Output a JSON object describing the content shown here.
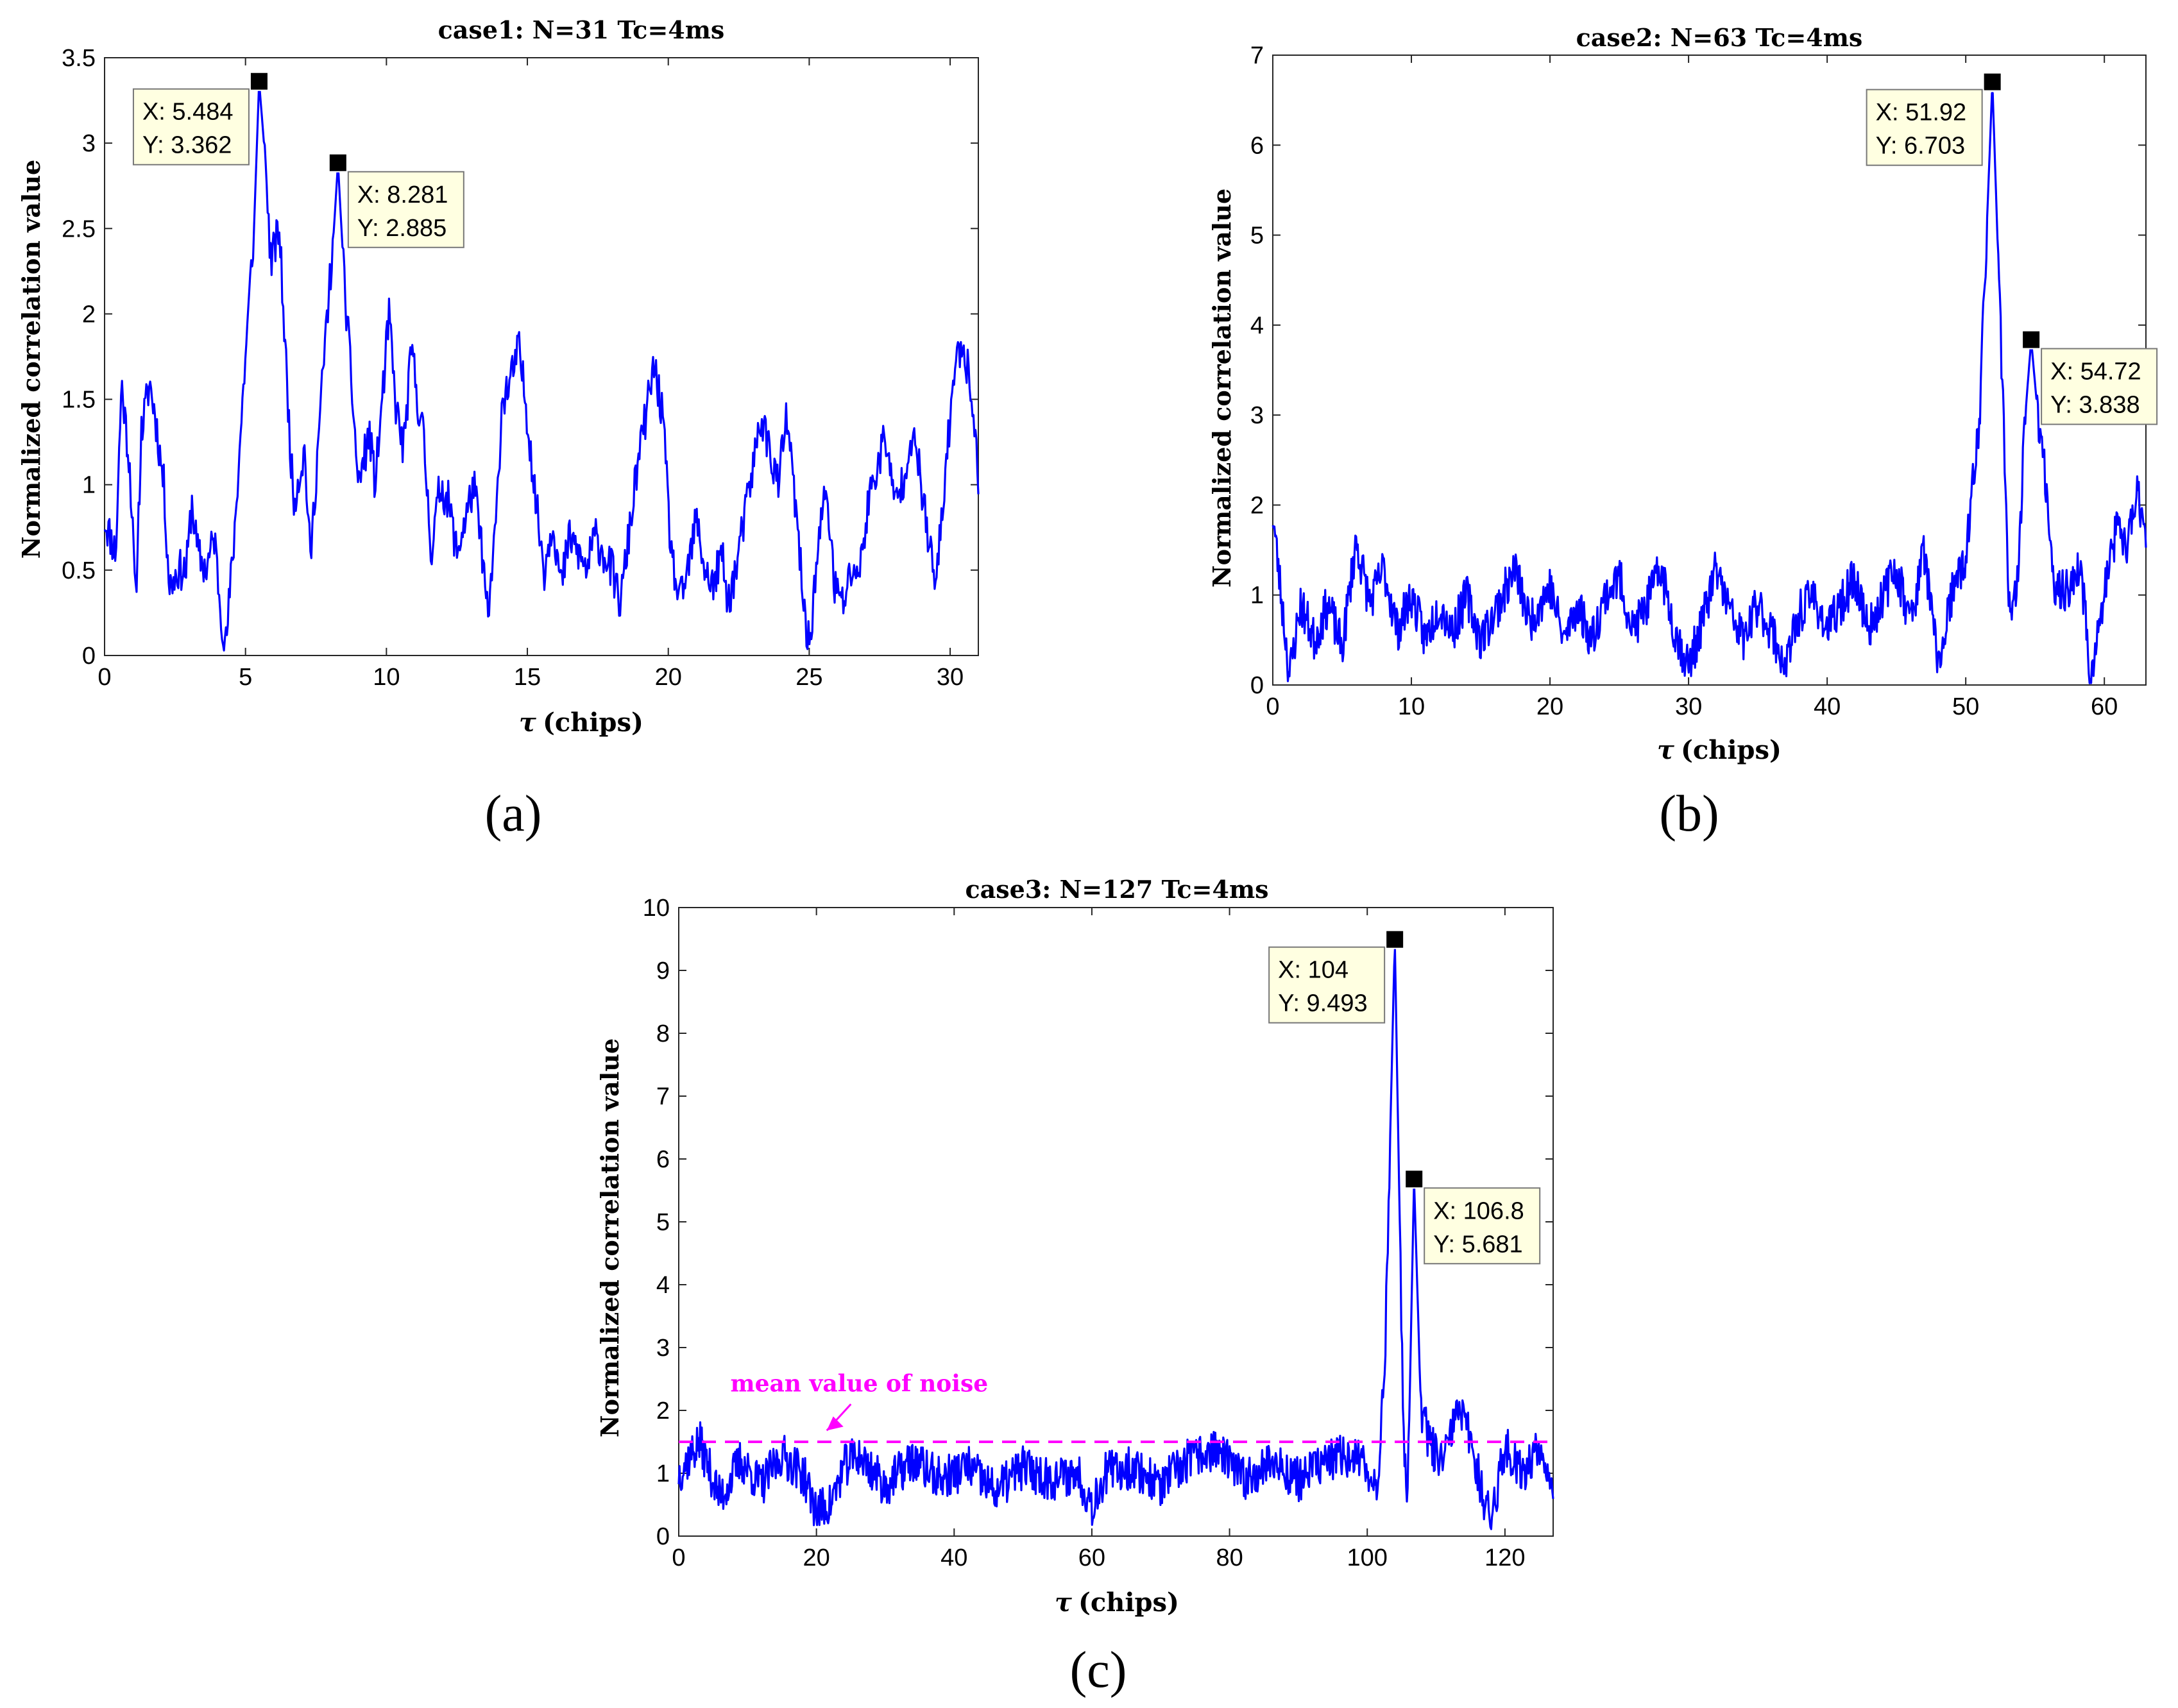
{
  "chart_data": [
    {
      "type": "line",
      "panel_label": "(a)",
      "title": "case1: N=31 Tc=4ms",
      "xlabel": "(chips)",
      "xlabel_symbol": "τ",
      "ylabel": "Normalized correlation value",
      "xlim": [
        0,
        31
      ],
      "ylim": [
        0,
        3.5
      ],
      "xticks": [
        0,
        5,
        10,
        15,
        20,
        25,
        30
      ],
      "yticks": [
        0,
        0.5,
        1,
        1.5,
        2,
        2.5,
        3,
        3.5
      ],
      "line_color": "#0000ff",
      "noise_seed": 11,
      "points": [
        [
          0,
          0.8
        ],
        [
          0.4,
          0.6
        ],
        [
          0.6,
          1.6
        ],
        [
          0.9,
          1.1
        ],
        [
          1.1,
          0.3
        ],
        [
          1.3,
          1.3
        ],
        [
          1.6,
          1.6
        ],
        [
          1.8,
          1.4
        ],
        [
          2.1,
          1.0
        ],
        [
          2.3,
          0.4
        ],
        [
          2.6,
          0.5
        ],
        [
          2.9,
          0.5
        ],
        [
          3.1,
          0.9
        ],
        [
          3.3,
          0.6
        ],
        [
          3.6,
          0.5
        ],
        [
          3.9,
          0.7
        ],
        [
          4.1,
          0.3
        ],
        [
          4.3,
          0.05
        ],
        [
          4.6,
          0.7
        ],
        [
          4.9,
          1.5
        ],
        [
          5.1,
          2.0
        ],
        [
          5.3,
          2.5
        ],
        [
          5.484,
          3.362
        ],
        [
          5.7,
          2.9
        ],
        [
          5.9,
          2.3
        ],
        [
          6.2,
          2.5
        ],
        [
          6.5,
          1.5
        ],
        [
          6.7,
          0.9
        ],
        [
          7.1,
          1.2
        ],
        [
          7.3,
          0.55
        ],
        [
          7.6,
          1.3
        ],
        [
          7.9,
          2.0
        ],
        [
          8.1,
          2.4
        ],
        [
          8.281,
          2.885
        ],
        [
          8.5,
          2.2
        ],
        [
          8.8,
          1.5
        ],
        [
          9.0,
          1.0
        ],
        [
          9.4,
          1.3
        ],
        [
          9.6,
          1.0
        ],
        [
          9.9,
          1.6
        ],
        [
          10.1,
          2.0
        ],
        [
          10.3,
          1.5
        ],
        [
          10.6,
          1.2
        ],
        [
          10.9,
          1.8
        ],
        [
          11.1,
          1.5
        ],
        [
          11.3,
          1.3
        ],
        [
          11.6,
          0.6
        ],
        [
          11.9,
          1.0
        ],
        [
          12.2,
          0.9
        ],
        [
          12.5,
          0.6
        ],
        [
          12.8,
          0.8
        ],
        [
          13.1,
          1.0
        ],
        [
          13.4,
          0.6
        ],
        [
          13.6,
          0.2
        ],
        [
          13.9,
          0.8
        ],
        [
          14.1,
          1.5
        ],
        [
          14.4,
          1.6
        ],
        [
          14.7,
          1.8
        ],
        [
          15.0,
          1.4
        ],
        [
          15.3,
          0.9
        ],
        [
          15.6,
          0.5
        ],
        [
          15.9,
          0.8
        ],
        [
          16.2,
          0.4
        ],
        [
          16.5,
          0.7
        ],
        [
          16.8,
          0.6
        ],
        [
          17.1,
          0.5
        ],
        [
          17.4,
          0.7
        ],
        [
          17.7,
          0.6
        ],
        [
          18.0,
          0.5
        ],
        [
          18.3,
          0.3
        ],
        [
          18.6,
          0.7
        ],
        [
          18.9,
          1.1
        ],
        [
          19.2,
          1.4
        ],
        [
          19.5,
          1.7
        ],
        [
          19.8,
          1.4
        ],
        [
          20.1,
          0.6
        ],
        [
          20.4,
          0.3
        ],
        [
          20.7,
          0.5
        ],
        [
          21.0,
          0.8
        ],
        [
          21.3,
          0.5
        ],
        [
          21.6,
          0.4
        ],
        [
          21.9,
          0.6
        ],
        [
          22.1,
          0.3
        ],
        [
          22.4,
          0.5
        ],
        [
          22.7,
          0.8
        ],
        [
          23.0,
          1.1
        ],
        [
          23.3,
          1.4
        ],
        [
          23.6,
          1.2
        ],
        [
          23.9,
          1.0
        ],
        [
          24.2,
          1.4
        ],
        [
          24.5,
          0.9
        ],
        [
          24.8,
          0.3
        ],
        [
          25.0,
          0.05
        ],
        [
          25.3,
          0.6
        ],
        [
          25.6,
          1.0
        ],
        [
          25.9,
          0.4
        ],
        [
          26.2,
          0.3
        ],
        [
          26.5,
          0.5
        ],
        [
          26.8,
          0.5
        ],
        [
          27.1,
          0.9
        ],
        [
          27.4,
          1.1
        ],
        [
          27.7,
          1.3
        ],
        [
          28.0,
          0.9
        ],
        [
          28.3,
          1.0
        ],
        [
          28.6,
          1.3
        ],
        [
          28.9,
          1.1
        ],
        [
          29.2,
          0.7
        ],
        [
          29.5,
          0.4
        ],
        [
          29.8,
          1.0
        ],
        [
          30.1,
          1.6
        ],
        [
          30.4,
          1.85
        ],
        [
          30.6,
          1.7
        ],
        [
          30.8,
          1.5
        ],
        [
          31.0,
          1.0
        ]
      ],
      "datatips": [
        {
          "x_text": "X: 5.484",
          "y_text": "Y: 3.362",
          "x": 5.484,
          "y": 3.362,
          "side": "left"
        },
        {
          "x_text": "X: 8.281",
          "y_text": "Y: 2.885",
          "x": 8.281,
          "y": 2.885,
          "side": "right"
        }
      ]
    },
    {
      "type": "line",
      "panel_label": "(b)",
      "title": "case2: N=63 Tc=4ms",
      "xlabel": "(chips)",
      "xlabel_symbol": "τ",
      "ylabel": "Normalized correlation value",
      "xlim": [
        0,
        63
      ],
      "ylim": [
        0,
        7
      ],
      "xticks": [
        0,
        10,
        20,
        30,
        40,
        50,
        60
      ],
      "yticks": [
        0,
        1,
        2,
        3,
        4,
        5,
        6,
        7
      ],
      "line_color": "#0000ff",
      "noise_seed": 23,
      "points": [
        [
          0,
          1.9
        ],
        [
          0.6,
          1.0
        ],
        [
          1.2,
          0.1
        ],
        [
          2.0,
          0.9
        ],
        [
          3.0,
          0.5
        ],
        [
          4.0,
          0.9
        ],
        [
          5.0,
          0.4
        ],
        [
          6.0,
          1.6
        ],
        [
          7.0,
          0.9
        ],
        [
          8.0,
          1.3
        ],
        [
          9.0,
          0.6
        ],
        [
          10.0,
          1.0
        ],
        [
          11.0,
          0.5
        ],
        [
          12.0,
          0.9
        ],
        [
          13.0,
          0.6
        ],
        [
          14.0,
          1.0
        ],
        [
          15.0,
          0.5
        ],
        [
          16.0,
          0.8
        ],
        [
          17.5,
          1.3
        ],
        [
          18.5,
          0.7
        ],
        [
          20.0,
          1.1
        ],
        [
          21.0,
          0.5
        ],
        [
          22.0,
          0.9
        ],
        [
          23.0,
          0.5
        ],
        [
          24.0,
          1.0
        ],
        [
          25.0,
          1.2
        ],
        [
          26.0,
          0.6
        ],
        [
          27.0,
          0.9
        ],
        [
          28.0,
          1.3
        ],
        [
          29.0,
          0.6
        ],
        [
          30.0,
          0.2
        ],
        [
          31.0,
          0.7
        ],
        [
          32.0,
          1.3
        ],
        [
          33.0,
          0.8
        ],
        [
          34.0,
          0.5
        ],
        [
          35.0,
          0.9
        ],
        [
          36.0,
          0.6
        ],
        [
          37.0,
          0.2
        ],
        [
          38.0,
          0.8
        ],
        [
          39.0,
          1.0
        ],
        [
          40.0,
          0.6
        ],
        [
          41.0,
          0.9
        ],
        [
          42.0,
          1.2
        ],
        [
          43.0,
          0.6
        ],
        [
          44.0,
          1.0
        ],
        [
          45.0,
          1.3
        ],
        [
          46.0,
          0.7
        ],
        [
          47.0,
          1.5
        ],
        [
          48.0,
          0.2
        ],
        [
          49.0,
          1.0
        ],
        [
          50.0,
          1.4
        ],
        [
          51.0,
          3.0
        ],
        [
          51.92,
          6.703
        ],
        [
          52.6,
          3.5
        ],
        [
          53.2,
          0.6
        ],
        [
          53.8,
          1.2
        ],
        [
          54.2,
          2.8
        ],
        [
          54.72,
          3.838
        ],
        [
          55.2,
          3.0
        ],
        [
          55.8,
          2.2
        ],
        [
          56.5,
          1.0
        ],
        [
          57.5,
          1.1
        ],
        [
          58.3,
          1.3
        ],
        [
          59.0,
          0.1
        ],
        [
          59.6,
          0.6
        ],
        [
          60.3,
          1.3
        ],
        [
          61.0,
          1.8
        ],
        [
          61.7,
          1.5
        ],
        [
          62.3,
          2.2
        ],
        [
          63.0,
          1.7
        ]
      ],
      "datatips": [
        {
          "x_text": "X: 51.92",
          "y_text": "Y: 6.703",
          "x": 51.92,
          "y": 6.703,
          "side": "left"
        },
        {
          "x_text": "X: 54.72",
          "y_text": "Y: 3.838",
          "x": 54.72,
          "y": 3.838,
          "side": "right"
        }
      ]
    },
    {
      "type": "line",
      "panel_label": "(c)",
      "title": "case3: N=127 Tc=4ms",
      "xlabel": "(chips)",
      "xlabel_symbol": "τ",
      "ylabel": "Normalized correlation value",
      "xlim": [
        0,
        127
      ],
      "ylim": [
        0,
        10
      ],
      "xticks": [
        0,
        20,
        40,
        60,
        80,
        100,
        120
      ],
      "yticks": [
        0,
        1,
        2,
        3,
        4,
        5,
        6,
        7,
        8,
        9,
        10
      ],
      "line_color": "#0000ff",
      "noise_seed": 37,
      "mean_noise": 1.5,
      "mean_noise_color": "#ff00ff",
      "annotation": "mean value of noise",
      "points": [
        [
          0,
          1.0
        ],
        [
          3,
          1.5
        ],
        [
          6,
          0.6
        ],
        [
          9,
          1.2
        ],
        [
          12,
          0.8
        ],
        [
          15,
          1.3
        ],
        [
          18,
          1.0
        ],
        [
          20,
          0.4
        ],
        [
          22,
          0.5
        ],
        [
          24,
          1.1
        ],
        [
          26,
          1.3
        ],
        [
          30,
          0.8
        ],
        [
          34,
          1.2
        ],
        [
          38,
          0.9
        ],
        [
          42,
          1.1
        ],
        [
          46,
          0.7
        ],
        [
          50,
          1.1
        ],
        [
          54,
          0.9
        ],
        [
          58,
          1.0
        ],
        [
          60,
          0.5
        ],
        [
          62,
          1.0
        ],
        [
          66,
          1.1
        ],
        [
          70,
          0.8
        ],
        [
          74,
          1.2
        ],
        [
          78,
          1.4
        ],
        [
          82,
          0.9
        ],
        [
          86,
          1.2
        ],
        [
          90,
          0.9
        ],
        [
          94,
          1.2
        ],
        [
          98,
          1.3
        ],
        [
          100,
          1.0
        ],
        [
          101.5,
          0.9
        ],
        [
          102.5,
          2.5
        ],
        [
          104,
          9.493
        ],
        [
          105.2,
          2.0
        ],
        [
          105.8,
          0.2
        ],
        [
          106.8,
          5.681
        ],
        [
          107.8,
          2.0
        ],
        [
          109,
          1.5
        ],
        [
          111,
          1.1
        ],
        [
          113,
          2.0
        ],
        [
          115,
          1.6
        ],
        [
          117,
          0.5
        ],
        [
          118,
          0.3
        ],
        [
          120,
          1.4
        ],
        [
          123,
          1.0
        ],
        [
          125,
          1.5
        ],
        [
          127,
          0.8
        ]
      ],
      "datatips": [
        {
          "x_text": "X: 104",
          "y_text": "Y: 9.493",
          "x": 104,
          "y": 9.493,
          "side": "left"
        },
        {
          "x_text": "X: 106.8",
          "y_text": "Y: 5.681",
          "x": 106.8,
          "y": 5.681,
          "side": "right"
        }
      ]
    }
  ]
}
